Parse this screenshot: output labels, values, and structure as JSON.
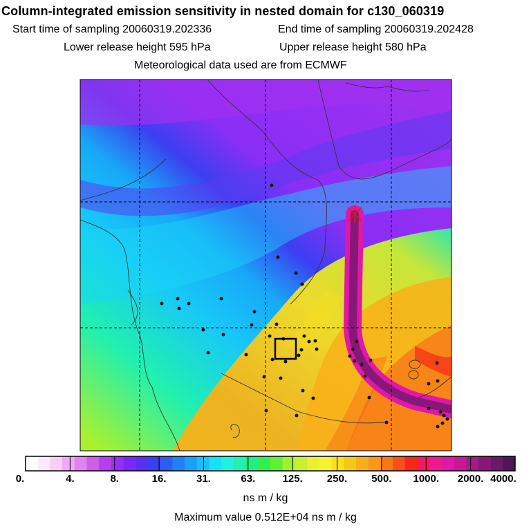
{
  "title": "Column-integrated emission sensitivity in nested domain for c130_060319",
  "start_label": "Start time of sampling 20060319.202336",
  "end_label": "End time of sampling 20060319.202428",
  "lower_label": "Lower release height  595 hPa",
  "upper_label": "Upper release height  580 hPa",
  "met_label": "Meteorological data used are from ECMWF",
  "colorbar": {
    "ticks": [
      "0.",
      "4.",
      "8.",
      "16.",
      "31.",
      "63.",
      "125.",
      "250.",
      "500.",
      "1000.",
      "2000.",
      "4000."
    ],
    "colors": [
      "#ffffff",
      "#fde8fd",
      "#f8cdf8",
      "#f0a8f4",
      "#e083f0",
      "#cc5ee8",
      "#b63ef0",
      "#9a2ef5",
      "#7a28f5",
      "#5a30f0",
      "#3a40f0",
      "#2a60f0",
      "#2080f5",
      "#1aa0f8",
      "#18c0f8",
      "#18e0f8",
      "#20f0e0",
      "#20f0b0",
      "#20f080",
      "#30f050",
      "#60f030",
      "#a0f030",
      "#c8f030",
      "#e8f030",
      "#f8f030",
      "#f8e020",
      "#f8c818",
      "#f8b018",
      "#f89818",
      "#f87818",
      "#f85018",
      "#f82818",
      "#f81860",
      "#f01890",
      "#e018a8",
      "#c81898",
      "#a81888",
      "#881878",
      "#6a1868",
      "#501458"
    ],
    "unit": "ns m / kg"
  },
  "max_label": "Maximum value  0.512E+04 ns m / kg"
}
